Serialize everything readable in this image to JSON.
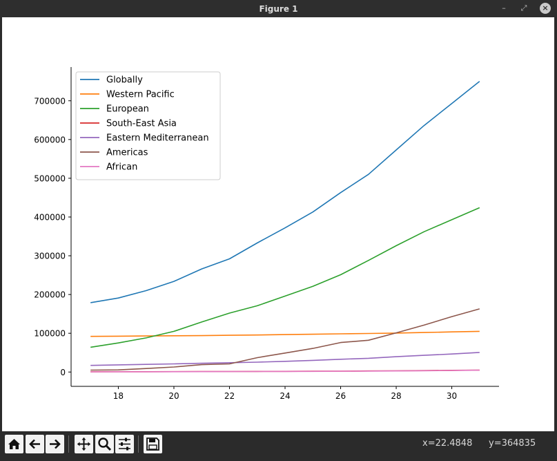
{
  "window": {
    "title": "Figure 1",
    "buttons": {
      "minimize": "–",
      "maximize": "⤢",
      "close": "×"
    }
  },
  "toolbar": {
    "icons": [
      "home-icon",
      "back-arrow-icon",
      "forward-arrow-icon",
      "pan-icon",
      "zoom-icon",
      "configure-subplots-icon",
      "save-icon"
    ]
  },
  "status": {
    "x": "x=22.4848",
    "y": "y=364835"
  },
  "chart_data": {
    "type": "line",
    "title": "",
    "xlabel": "",
    "ylabel": "",
    "x": [
      17,
      18,
      19,
      20,
      21,
      22,
      23,
      24,
      25,
      26,
      27,
      28,
      29,
      30,
      31
    ],
    "xlim": [
      16.3,
      31.7
    ],
    "ylim": [
      -37000,
      787000
    ],
    "xticks": [
      "18",
      "20",
      "22",
      "24",
      "26",
      "28",
      "30"
    ],
    "yticks": [
      "0",
      "100000",
      "200000",
      "300000",
      "400000",
      "500000",
      "600000",
      "700000"
    ],
    "legend_position": "upper-left",
    "grid": false,
    "series": [
      {
        "name": "Globally",
        "color": "#1f77b4",
        "values": [
          179000,
          191000,
          210000,
          234000,
          266000,
          292000,
          333000,
          372000,
          413000,
          463000,
          510000,
          573000,
          636000,
          693000,
          750000
        ]
      },
      {
        "name": "Western Pacific",
        "color": "#ff7f0e",
        "values": [
          92000,
          92500,
          93000,
          93500,
          94000,
          94800,
          95500,
          96500,
          97500,
          98500,
          99500,
          100500,
          102000,
          103500,
          105000
        ]
      },
      {
        "name": "European",
        "color": "#2ca02c",
        "values": [
          64000,
          75000,
          88000,
          105000,
          129000,
          152000,
          171000,
          196000,
          221000,
          251000,
          288000,
          326000,
          362000,
          393000,
          424000
        ]
      },
      {
        "name": "South-East Asia",
        "color": "#d62728",
        "values": [
          700,
          800,
          900,
          1000,
          1100,
          1300,
          1500,
          1700,
          2000,
          2300,
          2700,
          3100,
          3700,
          4300,
          4900
        ]
      },
      {
        "name": "Eastern Mediterranean",
        "color": "#9467bd",
        "values": [
          17000,
          18500,
          19700,
          21000,
          22500,
          24000,
          25500,
          27500,
          30000,
          33000,
          35500,
          39500,
          43000,
          46500,
          50500
        ]
      },
      {
        "name": "Americas",
        "color": "#8c564b",
        "values": [
          5000,
          5500,
          9000,
          13000,
          19000,
          21000,
          37000,
          49000,
          61000,
          76000,
          82000,
          101000,
          121000,
          143000,
          163000
        ]
      },
      {
        "name": "African",
        "color": "#e377c2",
        "values": [
          500,
          600,
          700,
          800,
          1000,
          1200,
          1300,
          1500,
          1700,
          2000,
          2400,
          2800,
          3300,
          3800,
          4700
        ]
      }
    ]
  }
}
